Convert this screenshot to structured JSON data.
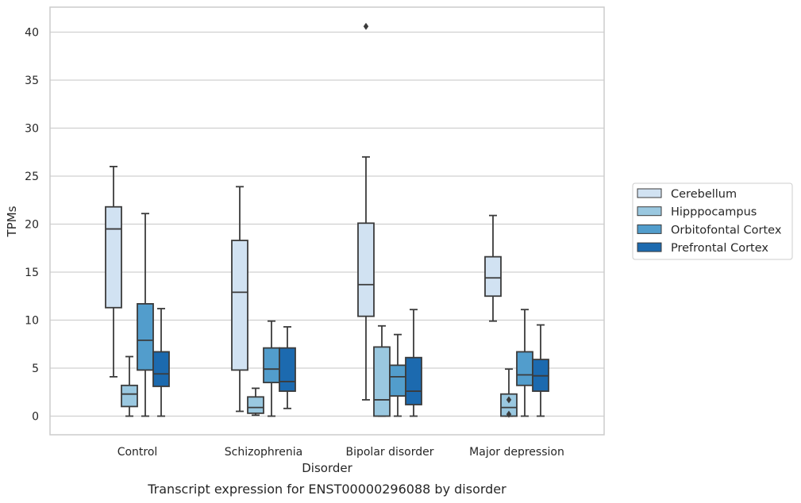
{
  "chart_data": {
    "type": "box",
    "caption": "Transcript expression for ENST00000296088 by disorder",
    "xlabel": "Disorder",
    "ylabel": "TPMs",
    "ylim": [
      -2,
      42.5
    ],
    "yticks": [
      0,
      5,
      10,
      15,
      20,
      25,
      30,
      35,
      40
    ],
    "grid": "horizontal",
    "legend_position": "right",
    "categories": [
      "Control",
      "Schizophrenia",
      "Bipolar disorder",
      "Major depression"
    ],
    "series": [
      {
        "name": "Cerebellum",
        "color": "#d1e2f2",
        "boxes": [
          {
            "min": 4.1,
            "q1": 11.3,
            "median": 19.5,
            "q3": 21.8,
            "max": 26.0,
            "outliers": []
          },
          {
            "min": 0.5,
            "q1": 4.8,
            "median": 12.9,
            "q3": 18.3,
            "max": 23.9,
            "outliers": []
          },
          {
            "min": 1.7,
            "q1": 10.4,
            "median": 13.7,
            "q3": 20.1,
            "max": 27.0,
            "outliers": [
              40.6
            ]
          },
          {
            "min": 9.9,
            "q1": 12.5,
            "median": 14.4,
            "q3": 16.6,
            "max": 20.9,
            "outliers": []
          }
        ]
      },
      {
        "name": "Hipppocampus",
        "color": "#9ac8e0",
        "boxes": [
          {
            "min": 0.0,
            "q1": 1.0,
            "median": 2.3,
            "q3": 3.2,
            "max": 6.2,
            "outliers": []
          },
          {
            "min": 0.1,
            "q1": 0.3,
            "median": 0.9,
            "q3": 2.0,
            "max": 2.9,
            "outliers": []
          },
          {
            "min": 0.0,
            "q1": 0.0,
            "median": 1.7,
            "q3": 7.2,
            "max": 9.4,
            "outliers": []
          },
          {
            "min": 0.0,
            "q1": 0.0,
            "median": 0.9,
            "q3": 2.3,
            "max": 4.9,
            "outliers": [
              1.7,
              0.2
            ]
          }
        ]
      },
      {
        "name": "Orbitofontal Cortex",
        "color": "#529dcc",
        "boxes": [
          {
            "min": 0.0,
            "q1": 4.8,
            "median": 7.9,
            "q3": 11.7,
            "max": 21.1,
            "outliers": []
          },
          {
            "min": 0.0,
            "q1": 3.5,
            "median": 4.9,
            "q3": 7.1,
            "max": 9.9,
            "outliers": []
          },
          {
            "min": 0.0,
            "q1": 2.1,
            "median": 4.1,
            "q3": 5.3,
            "max": 8.5,
            "outliers": []
          },
          {
            "min": 0.0,
            "q1": 3.2,
            "median": 4.3,
            "q3": 6.7,
            "max": 11.1,
            "outliers": []
          }
        ]
      },
      {
        "name": "Prefrontal Cortex",
        "color": "#1c6aaf",
        "boxes": [
          {
            "min": 0.0,
            "q1": 3.1,
            "median": 4.4,
            "q3": 6.7,
            "max": 11.2,
            "outliers": []
          },
          {
            "min": 0.8,
            "q1": 2.6,
            "median": 3.6,
            "q3": 7.1,
            "max": 9.3,
            "outliers": []
          },
          {
            "min": 0.0,
            "q1": 1.2,
            "median": 2.6,
            "q3": 6.1,
            "max": 11.1,
            "outliers": []
          },
          {
            "min": 0.0,
            "q1": 2.6,
            "median": 4.2,
            "q3": 5.9,
            "max": 9.5,
            "outliers": []
          }
        ]
      }
    ]
  }
}
